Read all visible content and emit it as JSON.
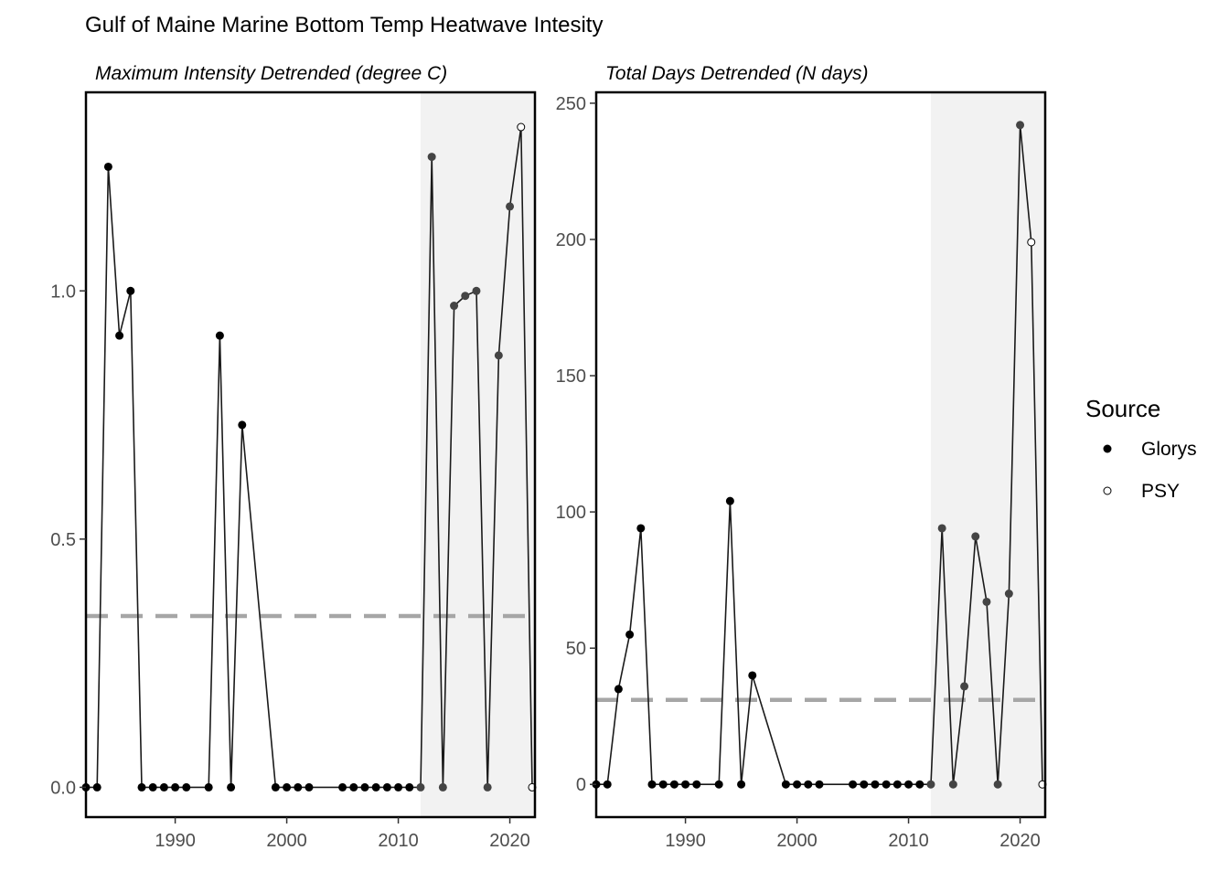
{
  "title": "Gulf of Maine Marine Bottom Temp Heatwave Intesity",
  "legend": {
    "title": "Source",
    "position": "right",
    "items": [
      {
        "label": "Glorys",
        "marker": "filled-circle"
      },
      {
        "label": "PSY",
        "marker": "open-circle"
      }
    ]
  },
  "colors": {
    "points": "#000000",
    "shaded_points": "#444444",
    "reference_line": "#a6a6a6",
    "shade": "#f2f2f2",
    "axis_text": "#4d4d4d"
  },
  "chart_data": [
    {
      "type": "line",
      "title": "Maximum Intensity Detrended (degree C)",
      "xlabel": "",
      "ylabel": "",
      "grid": false,
      "xlim": [
        1982,
        2022
      ],
      "ylim": [
        -0.06,
        1.4
      ],
      "xticks": [
        1990,
        2000,
        2010,
        2020
      ],
      "yticks": [
        0.0,
        0.5,
        1.0
      ],
      "ytick_labels": [
        "0.0",
        "0.5",
        "1.0"
      ],
      "shaded_region": {
        "x_start": 2012,
        "x_end": 2022.3
      },
      "reference_line": {
        "y": 0.345,
        "style": "dashed"
      },
      "series": [
        {
          "name": "Glorys",
          "x": [
            1982,
            1983,
            1984,
            1985,
            1986,
            1987,
            1988,
            1989,
            1990,
            1991,
            1993,
            1994,
            1995,
            1996,
            1999,
            2000,
            2001,
            2002,
            2005,
            2006,
            2007,
            2008,
            2009,
            2010,
            2011,
            2012,
            2013,
            2014,
            2015,
            2016,
            2017,
            2018,
            2019,
            2020
          ],
          "y": [
            0,
            0,
            1.25,
            0.91,
            1.0,
            0,
            0,
            0,
            0,
            0,
            0,
            0.91,
            0,
            0.73,
            0,
            0,
            0,
            0,
            0,
            0,
            0,
            0,
            0,
            0,
            0,
            0,
            1.27,
            0,
            0.97,
            0.99,
            1.0,
            0,
            0.87,
            1.17
          ]
        },
        {
          "name": "PSY",
          "x": [
            2021,
            2022
          ],
          "y": [
            1.33,
            0
          ]
        }
      ]
    },
    {
      "type": "line",
      "title": "Total Days Detrended (N days)",
      "xlabel": "",
      "ylabel": "",
      "grid": false,
      "xlim": [
        1982,
        2022
      ],
      "ylim": [
        -12,
        254
      ],
      "xticks": [
        1990,
        2000,
        2010,
        2020
      ],
      "yticks": [
        0,
        50,
        100,
        150,
        200,
        250
      ],
      "ytick_labels": [
        "0",
        "50",
        "100",
        "150",
        "200",
        "250"
      ],
      "shaded_region": {
        "x_start": 2012,
        "x_end": 2022.3
      },
      "reference_line": {
        "y": 31,
        "style": "dashed"
      },
      "series": [
        {
          "name": "Glorys",
          "x": [
            1982,
            1983,
            1984,
            1985,
            1986,
            1987,
            1988,
            1989,
            1990,
            1991,
            1993,
            1994,
            1995,
            1996,
            1999,
            2000,
            2001,
            2002,
            2005,
            2006,
            2007,
            2008,
            2009,
            2010,
            2011,
            2012,
            2013,
            2014,
            2015,
            2016,
            2017,
            2018,
            2019,
            2020
          ],
          "y": [
            0,
            0,
            35,
            55,
            94,
            0,
            0,
            0,
            0,
            0,
            0,
            104,
            0,
            40,
            0,
            0,
            0,
            0,
            0,
            0,
            0,
            0,
            0,
            0,
            0,
            0,
            94,
            0,
            36,
            91,
            67,
            0,
            70,
            242
          ]
        },
        {
          "name": "PSY",
          "x": [
            2021,
            2022
          ],
          "y": [
            199,
            0
          ]
        }
      ]
    }
  ]
}
